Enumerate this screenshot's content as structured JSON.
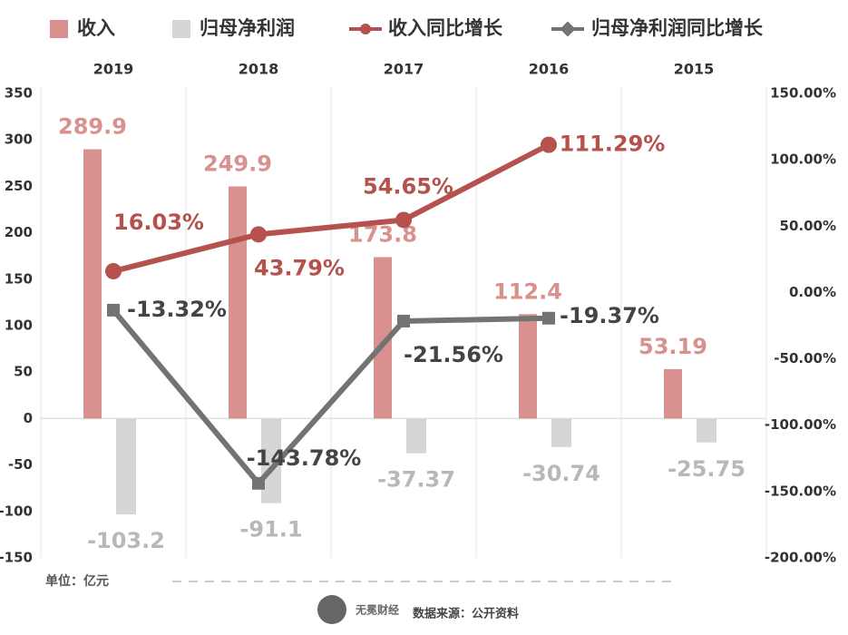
{
  "chart_data": {
    "type": "bar-line",
    "categories": [
      "2019",
      "2018",
      "2017",
      "2016",
      "2015"
    ],
    "series": [
      {
        "name": "收入",
        "type": "bar",
        "color": "#d9918f",
        "values": [
          289.9,
          249.9,
          173.8,
          112.4,
          53.19
        ]
      },
      {
        "name": "归母净利润",
        "type": "bar",
        "color": "#d6d6d6",
        "label_color": "#b8b8b8",
        "values": [
          -103.2,
          -91.1,
          -37.37,
          -30.74,
          -25.75
        ]
      },
      {
        "name": "收入同比增长",
        "type": "line",
        "axis": "y2",
        "color": "#b5524d",
        "marker": "circle",
        "values": [
          16.03,
          43.79,
          54.65,
          111.29,
          null
        ],
        "value_labels": [
          "16.03%",
          "43.79%",
          "54.65%",
          "111.29%",
          null
        ]
      },
      {
        "name": "归母净利润同比增长",
        "type": "line",
        "axis": "y2",
        "color": "#737373",
        "marker": "square",
        "values": [
          -13.32,
          -143.78,
          -21.56,
          -19.37,
          null
        ],
        "value_labels": [
          "-13.32%",
          "-143.78%",
          "-21.56%",
          "-19.37%",
          null
        ]
      }
    ],
    "ylim": [
      -150,
      350
    ],
    "yticks": [
      -150,
      -100,
      -50,
      0,
      50,
      100,
      150,
      200,
      250,
      300,
      350
    ],
    "y2lim": [
      -200,
      150
    ],
    "y2ticks": [
      {
        "value": -200,
        "label": "-200.00%"
      },
      {
        "value": -150,
        "label": "-150.00%"
      },
      {
        "value": -100,
        "label": "-100.00%"
      },
      {
        "value": -50,
        "label": "-50.00%"
      },
      {
        "value": 0,
        "label": "0.00%"
      },
      {
        "value": 50,
        "label": "50.00%"
      },
      {
        "value": 100,
        "label": "100.00%"
      },
      {
        "value": 150,
        "label": "150.00%"
      }
    ],
    "grid": false,
    "legend": "top",
    "unit_note": "单位：亿元",
    "logo_text": "无冕财经",
    "source": "数据来源：公开资料"
  }
}
